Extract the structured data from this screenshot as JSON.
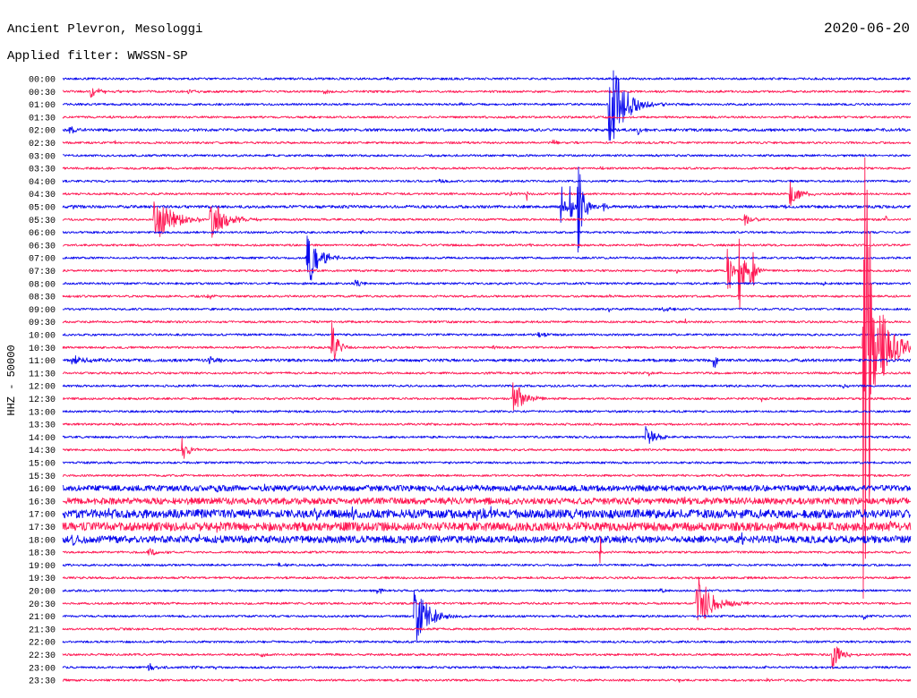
{
  "chart_data": {
    "type": "line",
    "title": "Ancient Plevron, Mesologgi",
    "date": "2020-06-20",
    "filter": "Applied filter: WWSSN-SP",
    "ylabel": "HHZ - 50000",
    "trace_colors": [
      "#0a0aee",
      "#ff1a55"
    ],
    "rows": [
      {
        "label": "00:00",
        "noise": 0.003,
        "events": [
          {
            "min": 11.4,
            "amp": 0.006,
            "dur": 0.3
          },
          {
            "min": 24.9,
            "amp": 0.006,
            "dur": 0.3
          }
        ]
      },
      {
        "label": "00:30",
        "noise": 0.003,
        "events": [
          {
            "min": 0.95,
            "amp": 0.02,
            "dur": 1.0
          },
          {
            "min": 4.4,
            "amp": 0.01,
            "dur": 1.0
          },
          {
            "min": 9.2,
            "amp": 0.008,
            "dur": 0.8
          }
        ]
      },
      {
        "label": "01:00",
        "noise": 0.003,
        "events": [
          {
            "min": 19.3,
            "amp": 0.145,
            "dur": 1.5
          },
          {
            "min": 14.0,
            "amp": 0.005,
            "dur": 0.5
          }
        ]
      },
      {
        "label": "01:30",
        "noise": 0.003,
        "events": [
          {
            "min": 2.6,
            "amp": 0.006,
            "dur": 0.3
          }
        ]
      },
      {
        "label": "02:00",
        "noise": 0.004,
        "events": [
          {
            "min": 0.2,
            "amp": 0.012,
            "dur": 0.8
          },
          {
            "min": 20.3,
            "amp": 0.015,
            "dur": 0.6
          },
          {
            "min": 29.5,
            "amp": 0.008,
            "dur": 0.3
          }
        ]
      },
      {
        "label": "02:30",
        "noise": 0.003,
        "events": [
          {
            "min": 1.8,
            "amp": 0.012,
            "dur": 0.3
          },
          {
            "min": 17.3,
            "amp": 0.008,
            "dur": 0.8
          }
        ]
      },
      {
        "label": "03:00",
        "noise": 0.003,
        "events": [
          {
            "min": 13.0,
            "amp": 0.005,
            "dur": 0.3
          }
        ]
      },
      {
        "label": "03:30",
        "noise": 0.003,
        "events": [
          {
            "min": 8.9,
            "amp": 0.008,
            "dur": 0.5
          },
          {
            "min": 19.0,
            "amp": 0.006,
            "dur": 0.3
          }
        ]
      },
      {
        "label": "04:00",
        "noise": 0.003,
        "events": [
          {
            "min": 13.3,
            "amp": 0.008,
            "dur": 0.8
          },
          {
            "min": 28.0,
            "amp": 0.005,
            "dur": 0.3
          }
        ]
      },
      {
        "label": "04:30",
        "noise": 0.003,
        "events": [
          {
            "min": 10.2,
            "amp": 0.006,
            "dur": 0.3
          },
          {
            "min": 15.8,
            "amp": 0.01,
            "dur": 0.3
          },
          {
            "min": 16.4,
            "amp": 0.038,
            "dur": 0.1
          },
          {
            "min": 25.7,
            "amp": 0.038,
            "dur": 1.0
          }
        ]
      },
      {
        "label": "05:00",
        "noise": 0.004,
        "events": [
          {
            "min": 0.3,
            "amp": 0.006,
            "dur": 0.3
          },
          {
            "min": 17.6,
            "amp": 0.15,
            "dur": 0.3
          },
          {
            "min": 17.9,
            "amp": 0.075,
            "dur": 0.3
          },
          {
            "min": 18.2,
            "amp": 0.175,
            "dur": 0.5
          },
          {
            "min": 19.1,
            "amp": 0.02,
            "dur": 0.3
          },
          {
            "min": 25.5,
            "amp": 0.012,
            "dur": 0.5
          }
        ]
      },
      {
        "label": "05:30",
        "noise": 0.003,
        "events": [
          {
            "min": 3.2,
            "amp": 0.075,
            "dur": 1.8
          },
          {
            "min": 5.2,
            "amp": 0.06,
            "dur": 1.5
          },
          {
            "min": 24.1,
            "amp": 0.025,
            "dur": 0.8
          },
          {
            "min": 29.1,
            "amp": 0.012,
            "dur": 0.3
          }
        ]
      },
      {
        "label": "06:00",
        "noise": 0.003,
        "events": [
          {
            "min": 10.5,
            "amp": 0.008,
            "dur": 0.4
          },
          {
            "min": 14.1,
            "amp": 0.006,
            "dur": 0.2
          }
        ]
      },
      {
        "label": "06:30",
        "noise": 0.003,
        "events": [
          {
            "min": 16.5,
            "amp": 0.005,
            "dur": 0.3
          }
        ]
      },
      {
        "label": "07:00",
        "noise": 0.003,
        "events": [
          {
            "min": 8.6,
            "amp": 0.12,
            "dur": 1.0
          }
        ]
      },
      {
        "label": "07:30",
        "noise": 0.003,
        "events": [
          {
            "min": 21.7,
            "amp": 0.01,
            "dur": 0.2
          },
          {
            "min": 23.5,
            "amp": 0.15,
            "dur": 0.3
          },
          {
            "min": 23.9,
            "amp": 0.19,
            "dur": 0.4
          },
          {
            "min": 24.3,
            "amp": 0.14,
            "dur": 0.4
          }
        ]
      },
      {
        "label": "08:00",
        "noise": 0.003,
        "events": [
          {
            "min": 10.3,
            "amp": 0.012,
            "dur": 0.8
          },
          {
            "min": 26.9,
            "amp": 0.008,
            "dur": 0.3
          }
        ]
      },
      {
        "label": "08:30",
        "noise": 0.003,
        "events": [
          {
            "min": 5.1,
            "amp": 0.008,
            "dur": 0.8
          },
          {
            "min": 19.3,
            "amp": 0.006,
            "dur": 0.2
          }
        ]
      },
      {
        "label": "09:00",
        "noise": 0.003,
        "events": [
          {
            "min": 19.3,
            "amp": 0.015,
            "dur": 0.1
          },
          {
            "min": 21.2,
            "amp": 0.008,
            "dur": 0.8
          }
        ]
      },
      {
        "label": "09:30",
        "noise": 0.003,
        "events": [
          {
            "min": 22.0,
            "amp": 0.01,
            "dur": 0.3
          }
        ]
      },
      {
        "label": "10:00",
        "noise": 0.003,
        "events": [
          {
            "min": 16.8,
            "amp": 0.01,
            "dur": 0.8
          }
        ]
      },
      {
        "label": "10:30",
        "noise": 0.003,
        "events": [
          {
            "min": 9.5,
            "amp": 0.09,
            "dur": 0.6
          },
          {
            "min": 15.2,
            "amp": 0.006,
            "dur": 0.3
          },
          {
            "min": 28.3,
            "amp": 1.0,
            "dur": 0.6
          },
          {
            "min": 28.5,
            "amp": 0.14,
            "dur": 2.2
          }
        ]
      },
      {
        "label": "11:00",
        "noise": 0.004,
        "events": [
          {
            "min": 0.3,
            "amp": 0.012,
            "dur": 2.0
          },
          {
            "min": 5.1,
            "amp": 0.015,
            "dur": 0.8
          },
          {
            "min": 23.0,
            "amp": 0.075,
            "dur": 0.2
          }
        ]
      },
      {
        "label": "11:30",
        "noise": 0.003,
        "events": [
          {
            "min": 20.7,
            "amp": 0.012,
            "dur": 0.4
          }
        ]
      },
      {
        "label": "12:00",
        "noise": 0.003,
        "events": [
          {
            "min": 4.6,
            "amp": 0.01,
            "dur": 0.2
          },
          {
            "min": 27.6,
            "amp": 0.01,
            "dur": 0.3
          }
        ]
      },
      {
        "label": "12:30",
        "noise": 0.003,
        "events": [
          {
            "min": 15.9,
            "amp": 0.062,
            "dur": 1.0
          },
          {
            "min": 24.7,
            "amp": 0.01,
            "dur": 0.3
          }
        ]
      },
      {
        "label": "13:00",
        "noise": 0.003,
        "events": [
          {
            "min": 6.0,
            "amp": 0.005,
            "dur": 0.3
          },
          {
            "min": 29.0,
            "amp": 0.006,
            "dur": 0.3
          }
        ]
      },
      {
        "label": "13:30",
        "noise": 0.003,
        "events": []
      },
      {
        "label": "14:00",
        "noise": 0.003,
        "events": [
          {
            "min": 20.6,
            "amp": 0.04,
            "dur": 0.8
          }
        ]
      },
      {
        "label": "14:30",
        "noise": 0.003,
        "events": [
          {
            "min": 4.2,
            "amp": 0.042,
            "dur": 0.6
          }
        ]
      },
      {
        "label": "15:00",
        "noise": 0.003,
        "events": [
          {
            "min": 1.5,
            "amp": 0.006,
            "dur": 0.3
          },
          {
            "min": 10.5,
            "amp": 0.005,
            "dur": 0.4
          }
        ]
      },
      {
        "label": "15:30",
        "noise": 0.003,
        "events": []
      },
      {
        "label": "16:00",
        "noise": 0.008,
        "events": [
          {
            "min": 5.4,
            "amp": 0.012,
            "dur": 0.3
          },
          {
            "min": 7.1,
            "amp": 0.02,
            "dur": 0.4
          },
          {
            "min": 10.8,
            "amp": 0.012,
            "dur": 0.4
          },
          {
            "min": 14.6,
            "amp": 0.012,
            "dur": 0.3
          },
          {
            "min": 20.5,
            "amp": 0.012,
            "dur": 0.4
          }
        ]
      },
      {
        "label": "16:30",
        "noise": 0.009,
        "events": [
          {
            "min": 1.1,
            "amp": 0.015,
            "dur": 0.4
          },
          {
            "min": 4.3,
            "amp": 0.012,
            "dur": 0.3
          },
          {
            "min": 13.6,
            "amp": 0.015,
            "dur": 0.3
          },
          {
            "min": 22.0,
            "amp": 0.012,
            "dur": 0.3
          }
        ]
      },
      {
        "label": "17:00",
        "noise": 0.012,
        "events": [
          {
            "min": 1.6,
            "amp": 0.02,
            "dur": 0.3
          },
          {
            "min": 8.9,
            "amp": 0.02,
            "dur": 0.4
          },
          {
            "min": 10.2,
            "amp": 0.018,
            "dur": 0.3
          },
          {
            "min": 14.6,
            "amp": 0.03,
            "dur": 0.4
          },
          {
            "min": 15.1,
            "amp": 0.03,
            "dur": 0.3
          },
          {
            "min": 18.0,
            "amp": 0.018,
            "dur": 0.3
          },
          {
            "min": 23.0,
            "amp": 0.02,
            "dur": 0.3
          }
        ]
      },
      {
        "label": "17:30",
        "noise": 0.012,
        "events": [
          {
            "min": 5.4,
            "amp": 0.02,
            "dur": 0.4
          },
          {
            "min": 10.9,
            "amp": 0.018,
            "dur": 0.3
          },
          {
            "min": 18.2,
            "amp": 0.02,
            "dur": 0.3
          },
          {
            "min": 25.0,
            "amp": 0.018,
            "dur": 0.4
          },
          {
            "min": 29.2,
            "amp": 0.03,
            "dur": 0.3
          }
        ]
      },
      {
        "label": "18:00",
        "noise": 0.01,
        "events": [
          {
            "min": 0.3,
            "amp": 0.022,
            "dur": 0.5
          },
          {
            "min": 4.8,
            "amp": 0.014,
            "dur": 0.3
          },
          {
            "min": 12.0,
            "amp": 0.012,
            "dur": 0.3
          },
          {
            "min": 19.0,
            "amp": 0.015,
            "dur": 0.2
          },
          {
            "min": 24.0,
            "amp": 0.014,
            "dur": 0.3
          }
        ]
      },
      {
        "label": "18:30",
        "noise": 0.003,
        "events": [
          {
            "min": 3.0,
            "amp": 0.015,
            "dur": 1.0
          },
          {
            "min": 19.0,
            "amp": 0.22,
            "dur": 0.05
          }
        ]
      },
      {
        "label": "19:00",
        "noise": 0.003,
        "events": [
          {
            "min": 7.6,
            "amp": 0.01,
            "dur": 0.5
          },
          {
            "min": 22.8,
            "amp": 0.008,
            "dur": 0.2
          },
          {
            "min": 26.8,
            "amp": 0.01,
            "dur": 0.4
          }
        ]
      },
      {
        "label": "19:30",
        "noise": 0.003,
        "events": []
      },
      {
        "label": "20:00",
        "noise": 0.003,
        "events": [
          {
            "min": 11.1,
            "amp": 0.018,
            "dur": 0.4
          },
          {
            "min": 21.1,
            "amp": 0.008,
            "dur": 0.4
          }
        ]
      },
      {
        "label": "20:30",
        "noise": 0.003,
        "events": [
          {
            "min": 5.0,
            "amp": 0.006,
            "dur": 0.3
          },
          {
            "min": 22.4,
            "amp": 0.088,
            "dur": 1.5
          }
        ]
      },
      {
        "label": "21:00",
        "noise": 0.003,
        "events": [
          {
            "min": 12.4,
            "amp": 0.1,
            "dur": 1.3
          },
          {
            "min": 28.3,
            "amp": 0.012,
            "dur": 0.5
          }
        ]
      },
      {
        "label": "21:30",
        "noise": 0.003,
        "events": []
      },
      {
        "label": "22:00",
        "noise": 0.003,
        "events": []
      },
      {
        "label": "22:30",
        "noise": 0.003,
        "events": [
          {
            "min": 7.0,
            "amp": 0.008,
            "dur": 0.4
          },
          {
            "min": 27.2,
            "amp": 0.05,
            "dur": 0.8
          }
        ]
      },
      {
        "label": "23:00",
        "noise": 0.003,
        "events": [
          {
            "min": 3.0,
            "amp": 0.012,
            "dur": 1.0
          },
          {
            "min": 4.5,
            "amp": 0.01,
            "dur": 0.5
          },
          {
            "min": 5.4,
            "amp": 0.03,
            "dur": 0.05
          },
          {
            "min": 24.8,
            "amp": 0.006,
            "dur": 0.3
          }
        ]
      },
      {
        "label": "23:30",
        "noise": 0.003,
        "events": [
          {
            "min": 21.8,
            "amp": 0.008,
            "dur": 0.2
          },
          {
            "min": 24.9,
            "amp": 0.006,
            "dur": 0.3
          }
        ]
      }
    ]
  }
}
